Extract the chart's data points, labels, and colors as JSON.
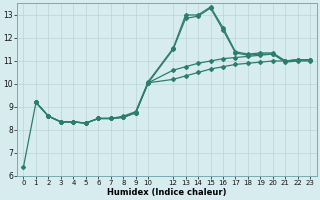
{
  "xlabel": "Humidex (Indice chaleur)",
  "background_color": "#d6ecee",
  "grid_color": "#b8d4d8",
  "line_color": "#2d7d6e",
  "xlim": [
    -0.5,
    23.5
  ],
  "ylim": [
    6,
    13.5
  ],
  "yticks": [
    6,
    7,
    8,
    9,
    10,
    11,
    12,
    13
  ],
  "xticks": [
    0,
    1,
    2,
    3,
    4,
    5,
    6,
    7,
    8,
    9,
    10,
    12,
    13,
    14,
    15,
    16,
    17,
    18,
    19,
    20,
    21,
    22,
    23
  ],
  "line1_x": [
    0,
    1,
    2,
    3,
    4,
    5,
    6,
    7,
    8,
    9,
    10,
    12,
    13,
    14,
    15,
    16,
    17,
    18,
    19,
    20,
    21,
    22,
    23
  ],
  "line1_y": [
    6.4,
    9.2,
    8.6,
    8.35,
    8.35,
    8.3,
    8.5,
    8.5,
    8.6,
    8.8,
    10.1,
    11.55,
    13.0,
    13.0,
    13.35,
    12.45,
    11.4,
    11.3,
    11.35,
    11.35,
    11.0,
    11.05,
    11.05
  ],
  "line2_x": [
    1,
    2,
    3,
    4,
    5,
    6,
    7,
    8,
    9,
    10,
    12,
    13,
    14,
    15,
    16,
    17,
    18,
    19,
    20,
    21,
    22,
    23
  ],
  "line2_y": [
    9.2,
    8.6,
    8.35,
    8.35,
    8.3,
    8.5,
    8.5,
    8.55,
    8.75,
    10.05,
    11.5,
    12.85,
    12.95,
    13.3,
    12.35,
    11.35,
    11.25,
    11.3,
    11.3,
    10.95,
    11.0,
    11.0
  ],
  "line3_x": [
    1,
    2,
    3,
    4,
    5,
    6,
    7,
    8,
    9,
    10,
    12,
    13,
    14,
    15,
    16,
    17,
    18,
    19,
    20,
    21,
    22,
    23
  ],
  "line3_y": [
    9.2,
    8.6,
    8.35,
    8.35,
    8.3,
    8.5,
    8.5,
    8.55,
    8.75,
    10.05,
    10.6,
    10.75,
    10.9,
    11.0,
    11.1,
    11.15,
    11.2,
    11.25,
    11.3,
    11.0,
    11.05,
    11.05
  ],
  "line4_x": [
    1,
    2,
    3,
    4,
    5,
    6,
    7,
    8,
    9,
    10,
    12,
    13,
    14,
    15,
    16,
    17,
    18,
    19,
    20,
    21,
    22,
    23
  ],
  "line4_y": [
    9.2,
    8.6,
    8.35,
    8.35,
    8.3,
    8.5,
    8.5,
    8.55,
    8.75,
    10.05,
    10.2,
    10.35,
    10.5,
    10.65,
    10.75,
    10.85,
    10.9,
    10.95,
    11.0,
    11.0,
    11.05,
    11.05
  ]
}
